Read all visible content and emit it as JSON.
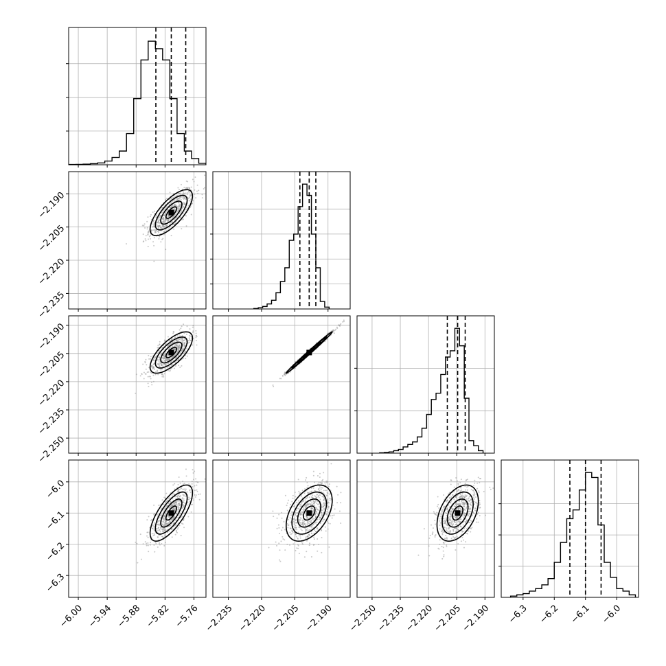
{
  "chart_data": {
    "type": "corner",
    "n_params": 4,
    "grid": true,
    "params": [
      {
        "range": [
          -6.02,
          -5.735
        ],
        "median": -5.807,
        "q16": -5.839,
        "q84": -5.777,
        "hist_bins": [
          -6.02,
          -6.005,
          -5.99,
          -5.975,
          -5.96,
          -5.945,
          -5.93,
          -5.915,
          -5.9,
          -5.885,
          -5.87,
          -5.855,
          -5.84,
          -5.825,
          -5.81,
          -5.795,
          -5.78,
          -5.765,
          -5.75,
          -5.735
        ],
        "hist_counts": [
          0.002,
          0.003,
          0.005,
          0.009,
          0.015,
          0.03,
          0.058,
          0.11,
          0.25,
          0.53,
          0.84,
          0.99,
          0.93,
          0.84,
          0.53,
          0.25,
          0.11,
          0.05,
          0.012
        ],
        "hist_ylim": [
          0,
          1.1
        ],
        "hist_yticks": [
          0.27,
          0.54,
          0.81
        ],
        "ticks": [
          -6.0,
          -5.94,
          -5.88,
          -5.82,
          -5.76
        ],
        "tick_labels": [
          "−6.00",
          "−5.94",
          "−5.88",
          "−5.82",
          "−5.76"
        ]
      },
      {
        "range": [
          -2.242,
          -2.18
        ],
        "median": -2.1985,
        "q16": -2.2027,
        "q84": -2.1955,
        "hist_bins": [
          -2.2235,
          -2.2215,
          -2.2195,
          -2.2175,
          -2.2155,
          -2.2135,
          -2.2115,
          -2.2095,
          -2.2075,
          -2.2055,
          -2.2035,
          -2.2015,
          -2.1995,
          -2.1975,
          -2.1955,
          -2.1935,
          -2.1915,
          -2.1895
        ],
        "hist_counts": [
          0.004,
          0.01,
          0.02,
          0.04,
          0.07,
          0.13,
          0.22,
          0.33,
          0.55,
          0.6,
          0.82,
          1.0,
          0.91,
          0.6,
          0.33,
          0.06,
          0.015
        ],
        "hist_ylim": [
          0,
          1.1
        ],
        "hist_yticks": [
          0.2,
          0.4,
          0.6,
          0.8
        ],
        "ticks": [
          -2.235,
          -2.22,
          -2.205,
          -2.19
        ],
        "tick_labels": [
          "−2.235",
          "−2.220",
          "−2.205",
          "−2.190"
        ]
      },
      {
        "range": [
          -2.258,
          -2.185
        ],
        "median": -2.2045,
        "q16": -2.21,
        "q84": -2.2005,
        "hist_bins": [
          -2.246,
          -2.2435,
          -2.241,
          -2.2385,
          -2.236,
          -2.2335,
          -2.231,
          -2.2285,
          -2.226,
          -2.2235,
          -2.221,
          -2.2185,
          -2.216,
          -2.2135,
          -2.211,
          -2.2085,
          -2.206,
          -2.2035,
          -2.201,
          -2.1985,
          -2.196,
          -2.1935,
          -2.191
        ],
        "hist_counts": [
          0.003,
          0.006,
          0.01,
          0.02,
          0.03,
          0.05,
          0.07,
          0.09,
          0.13,
          0.2,
          0.31,
          0.43,
          0.48,
          0.63,
          0.77,
          0.82,
          1.0,
          0.86,
          0.44,
          0.1,
          0.06,
          0.02
        ],
        "hist_ylim": [
          0,
          1.1
        ],
        "hist_yticks": [
          0.34,
          0.68
        ],
        "ticks": [
          -2.25,
          -2.235,
          -2.22,
          -2.205,
          -2.19
        ],
        "tick_labels": [
          "−2.250",
          "−2.235",
          "−2.220",
          "−2.205",
          "−2.190"
        ]
      },
      {
        "range": [
          -6.37,
          -5.93
        ],
        "median": -6.1,
        "q16": -6.15,
        "q84": -6.05,
        "hist_bins": [
          -6.34,
          -6.32,
          -6.3,
          -6.28,
          -6.26,
          -6.24,
          -6.22,
          -6.2,
          -6.18,
          -6.16,
          -6.14,
          -6.12,
          -6.1,
          -6.08,
          -6.06,
          -6.04,
          -6.02,
          -6.0,
          -5.98,
          -5.96,
          -5.94
        ],
        "hist_counts": [
          0.01,
          0.02,
          0.03,
          0.05,
          0.07,
          0.1,
          0.15,
          0.28,
          0.44,
          0.63,
          0.7,
          0.86,
          1.0,
          0.96,
          0.58,
          0.28,
          0.16,
          0.07,
          0.05,
          0.02
        ],
        "hist_ylim": [
          0,
          1.1
        ],
        "hist_yticks": [
          0.25,
          0.5,
          0.75
        ],
        "ticks": [
          -6.3,
          -6.2,
          -6.1,
          -6.0
        ],
        "tick_labels": [
          "−6.3",
          "−6.2",
          "−6.1",
          "−6.0"
        ]
      }
    ],
    "pairs": [
      {
        "x": 0,
        "y": 1,
        "center": [
          -5.807,
          -2.1985
        ],
        "sigma": [
          0.022,
          0.0052
        ],
        "rho": 0.72
      },
      {
        "x": 0,
        "y": 2,
        "center": [
          -5.807,
          -2.2045
        ],
        "sigma": [
          0.022,
          0.0055
        ],
        "rho": 0.7
      },
      {
        "x": 1,
        "y": 2,
        "center": [
          -2.1985,
          -2.2045
        ],
        "sigma": [
          0.0052,
          0.0055
        ],
        "rho": 0.995
      },
      {
        "x": 0,
        "y": 3,
        "center": [
          -5.807,
          -6.1
        ],
        "sigma": [
          0.022,
          0.045
        ],
        "rho": 0.72
      },
      {
        "x": 1,
        "y": 3,
        "center": [
          -2.1985,
          -6.1
        ],
        "sigma": [
          0.0052,
          0.045
        ],
        "rho": 0.45
      },
      {
        "x": 2,
        "y": 3,
        "center": [
          -2.2045,
          -6.1
        ],
        "sigma": [
          0.0055,
          0.045
        ],
        "rho": 0.42
      }
    ],
    "contour_sigma_levels": [
      0.5,
      1.0,
      1.5,
      2.0
    ],
    "colors": {
      "line": "#000000",
      "points": "#9a9a9a",
      "grid": "#b0b0b0"
    }
  }
}
